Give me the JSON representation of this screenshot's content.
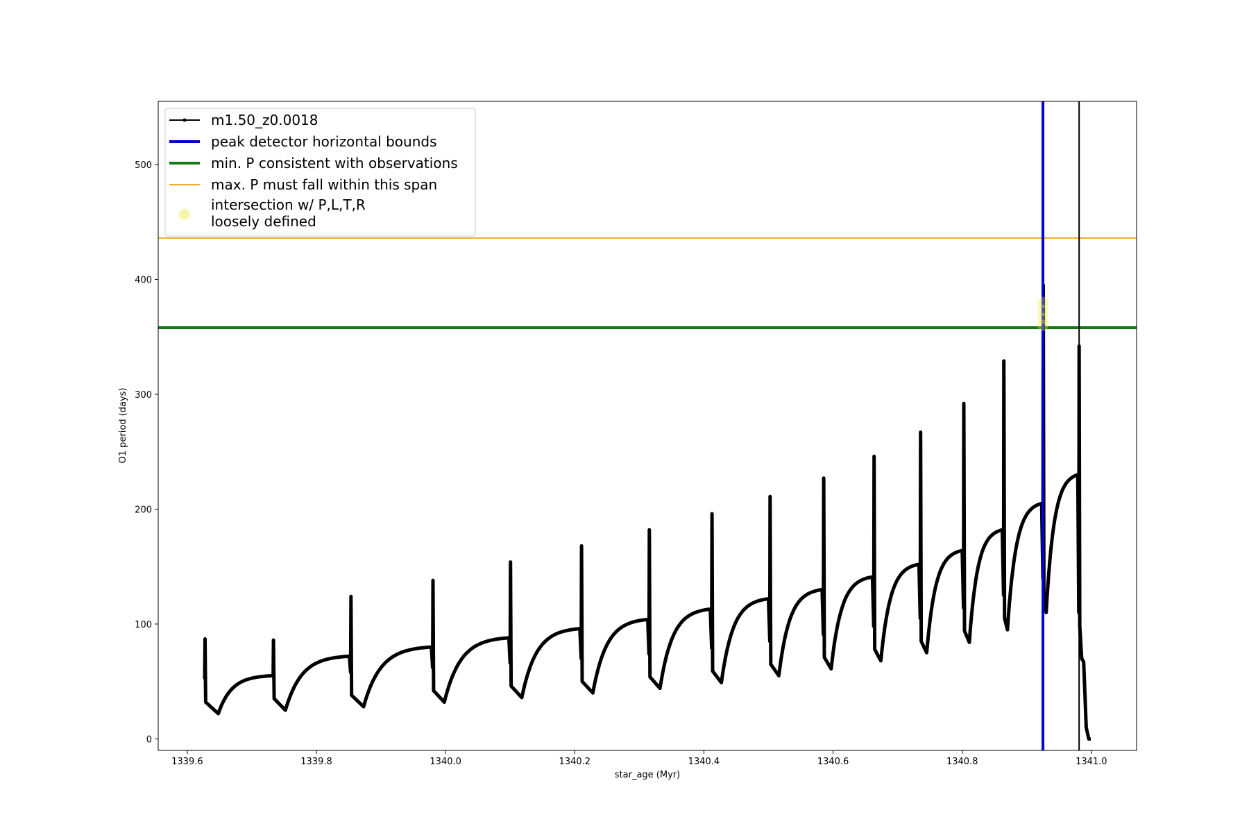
{
  "chart_data": {
    "type": "line",
    "xlabel": "star_age (Myr)",
    "ylabel": "O1 period (days)",
    "xlim": [
      1339.555,
      1341.07
    ],
    "ylim": [
      -10,
      555
    ],
    "xticks": [
      "1339.6",
      "1339.8",
      "1340.0",
      "1340.2",
      "1340.4",
      "1340.6",
      "1340.8",
      "1341.0"
    ],
    "yticks": [
      "0",
      "100",
      "200",
      "300",
      "400",
      "500"
    ],
    "legend_position": "top-left",
    "legend": [
      {
        "label": "m1.50_z0.0018",
        "kind": "line-marker",
        "color": "#000000"
      },
      {
        "label": "peak detector horizontal bounds",
        "kind": "line",
        "color": "#0000dd"
      },
      {
        "label": "min. P consistent with observations",
        "kind": "line",
        "color": "#127c12"
      },
      {
        "label": "max. P must fall within this span",
        "kind": "line",
        "color": "#f5a623"
      },
      {
        "label": "intersection w/ P,L,T,R\nloosely defined",
        "kind": "marker",
        "color": "#f4f49a"
      }
    ],
    "hlines": [
      {
        "name": "min. P consistent with observations",
        "y": 358,
        "color": "#127c12"
      },
      {
        "name": "max. P must fall within this span",
        "y": 436,
        "color": "#f5a623"
      }
    ],
    "vlines": [
      {
        "name": "peak detector horizontal bounds",
        "x": 1340.925,
        "color": "#0000dd"
      },
      {
        "name": "m1.50_z0.0018 final",
        "x": 1340.981,
        "color": "#000000"
      }
    ],
    "intersection_points": [
      {
        "x": 1340.925,
        "y": 380
      },
      {
        "x": 1340.925,
        "y": 373
      },
      {
        "x": 1340.925,
        "y": 366
      },
      {
        "x": 1340.925,
        "y": 360
      }
    ],
    "series": [
      {
        "name": "m1.50_z0.0018",
        "color": "#000000",
        "pulses": [
          {
            "start": 1339.627,
            "spike": 87,
            "trough": 22,
            "trough_x": 1339.648,
            "end": 55,
            "next": 1339.733
          },
          {
            "start": 1339.733,
            "spike": 86,
            "trough": 25,
            "trough_x": 1339.752,
            "end": 72,
            "next": 1339.853
          },
          {
            "start": 1339.853,
            "spike": 124,
            "trough": 28,
            "trough_x": 1339.873,
            "end": 80,
            "next": 1339.98
          },
          {
            "start": 1339.98,
            "spike": 138,
            "trough": 32,
            "trough_x": 1339.998,
            "end": 88,
            "next": 1340.1
          },
          {
            "start": 1340.1,
            "spike": 154,
            "trough": 36,
            "trough_x": 1340.118,
            "end": 96,
            "next": 1340.21
          },
          {
            "start": 1340.21,
            "spike": 168,
            "trough": 40,
            "trough_x": 1340.228,
            "end": 104,
            "next": 1340.315
          },
          {
            "start": 1340.315,
            "spike": 182,
            "trough": 44,
            "trough_x": 1340.332,
            "end": 113,
            "next": 1340.412
          },
          {
            "start": 1340.412,
            "spike": 196,
            "trough": 49,
            "trough_x": 1340.427,
            "end": 122,
            "next": 1340.502
          },
          {
            "start": 1340.502,
            "spike": 211,
            "trough": 55,
            "trough_x": 1340.516,
            "end": 130,
            "next": 1340.585
          },
          {
            "start": 1340.585,
            "spike": 227,
            "trough": 61,
            "trough_x": 1340.597,
            "end": 141,
            "next": 1340.663
          },
          {
            "start": 1340.663,
            "spike": 246,
            "trough": 68,
            "trough_x": 1340.674,
            "end": 152,
            "next": 1340.735
          },
          {
            "start": 1340.735,
            "spike": 267,
            "trough": 75,
            "trough_x": 1340.745,
            "end": 164,
            "next": 1340.802
          },
          {
            "start": 1340.802,
            "spike": 292,
            "trough": 84,
            "trough_x": 1340.811,
            "end": 182,
            "next": 1340.864
          },
          {
            "start": 1340.864,
            "spike": 329,
            "trough": 95,
            "trough_x": 1340.87,
            "end": 205,
            "next": 1340.925
          },
          {
            "start": 1340.925,
            "spike": 395,
            "trough": 110,
            "trough_x": 1340.93,
            "end": 230,
            "next": 1340.981
          }
        ],
        "final_spike": 342,
        "tail": [
          [
            1340.982,
            98
          ],
          [
            1340.985,
            70
          ],
          [
            1340.988,
            67
          ],
          [
            1340.99,
            40
          ],
          [
            1340.992,
            10
          ],
          [
            1340.996,
            0
          ],
          [
            1340.999,
            0
          ]
        ]
      }
    ]
  }
}
